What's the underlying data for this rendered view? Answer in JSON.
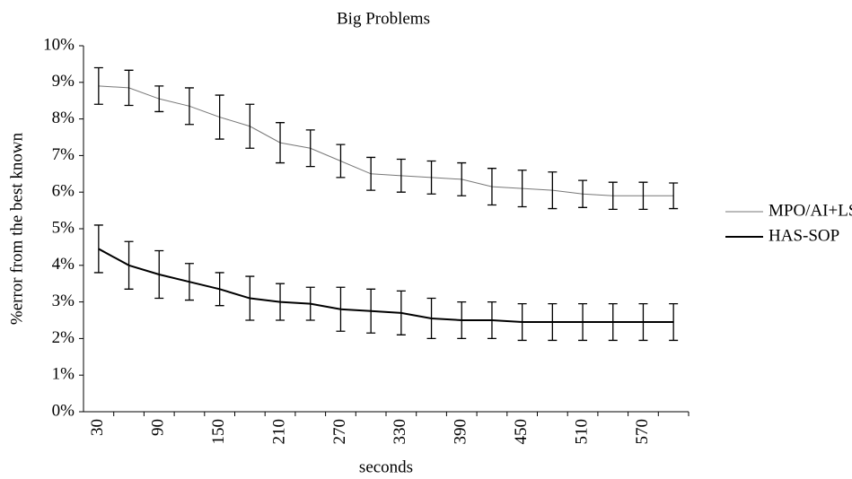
{
  "chart_data": {
    "type": "line",
    "title": "Big Problems",
    "x_label": "seconds",
    "y_label": "%error from the best known",
    "categories": [
      30,
      null,
      90,
      null,
      150,
      null,
      210,
      null,
      270,
      null,
      330,
      null,
      390,
      null,
      450,
      null,
      510,
      null,
      570,
      null
    ],
    "series": [
      {
        "name": "MPO/AI+LS",
        "color": "#777777",
        "width": 1,
        "values": [
          8.9,
          8.85,
          8.55,
          8.35,
          8.05,
          7.8,
          7.35,
          7.2,
          6.85,
          6.5,
          6.45,
          6.4,
          6.35,
          6.15,
          6.1,
          6.05,
          5.95,
          5.9,
          5.9,
          5.9
        ],
        "errors": [
          0.5,
          0.48,
          0.35,
          0.5,
          0.6,
          0.6,
          0.55,
          0.5,
          0.45,
          0.45,
          0.45,
          0.45,
          0.45,
          0.5,
          0.5,
          0.5,
          0.37,
          0.37,
          0.37,
          0.35
        ]
      },
      {
        "name": "HAS-SOP",
        "color": "#000000",
        "width": 2,
        "values": [
          4.45,
          4.0,
          3.75,
          3.55,
          3.35,
          3.1,
          3.0,
          2.95,
          2.8,
          2.75,
          2.7,
          2.55,
          2.5,
          2.5,
          2.45,
          2.45,
          2.45,
          2.45,
          2.45,
          2.45
        ],
        "errors": [
          0.65,
          0.65,
          0.65,
          0.5,
          0.45,
          0.6,
          0.5,
          0.45,
          0.6,
          0.6,
          0.6,
          0.55,
          0.5,
          0.5,
          0.5,
          0.5,
          0.5,
          0.5,
          0.5,
          0.5
        ]
      }
    ],
    "ylim": [
      0,
      10
    ],
    "yticks": [
      {
        "value": 0,
        "label": "0%"
      },
      {
        "value": 1,
        "label": "1%"
      },
      {
        "value": 2,
        "label": "2%"
      },
      {
        "value": 3,
        "label": "3%"
      },
      {
        "value": 4,
        "label": "4%"
      },
      {
        "value": 5,
        "label": "5%"
      },
      {
        "value": 6,
        "label": "6%"
      },
      {
        "value": 7,
        "label": "7%"
      },
      {
        "value": 8,
        "label": "8%"
      },
      {
        "value": 9,
        "label": "9%"
      },
      {
        "value": 10,
        "label": "10%"
      }
    ],
    "grid": false,
    "legend": "right"
  }
}
